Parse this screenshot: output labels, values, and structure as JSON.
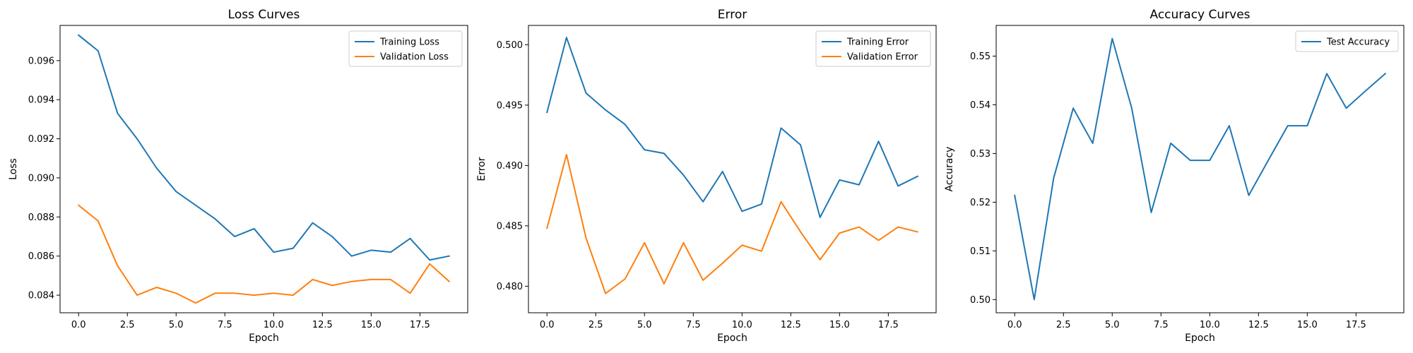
{
  "colors": {
    "blue": "#1f77b4",
    "orange": "#ff7f0e",
    "axis": "#000000",
    "legend_border": "#cccccc"
  },
  "chart_data": [
    {
      "type": "line",
      "title": "Loss Curves",
      "xlabel": "Epoch",
      "ylabel": "Loss",
      "x": [
        0,
        1,
        2,
        3,
        4,
        5,
        6,
        7,
        8,
        9,
        10,
        11,
        12,
        13,
        14,
        15,
        16,
        17,
        18,
        19
      ],
      "xlim": [
        -0.95,
        19.95
      ],
      "ylim": [
        0.0831,
        0.0978
      ],
      "xticks": [
        0.0,
        2.5,
        5.0,
        7.5,
        10.0,
        12.5,
        15.0,
        17.5
      ],
      "xtick_labels": [
        "0.0",
        "2.5",
        "5.0",
        "7.5",
        "10.0",
        "12.5",
        "15.0",
        "17.5"
      ],
      "yticks": [
        0.084,
        0.086,
        0.088,
        0.09,
        0.092,
        0.094,
        0.096
      ],
      "ytick_labels": [
        "0.084",
        "0.086",
        "0.088",
        "0.090",
        "0.092",
        "0.094",
        "0.096"
      ],
      "legend": "top-right",
      "grid": false,
      "series": [
        {
          "name": "Training Loss",
          "color": "#1f77b4",
          "values": [
            0.0973,
            0.0965,
            0.0933,
            0.092,
            0.0905,
            0.0893,
            0.0886,
            0.0879,
            0.087,
            0.0874,
            0.0862,
            0.0864,
            0.0877,
            0.087,
            0.086,
            0.0863,
            0.0862,
            0.0869,
            0.0858,
            0.086
          ]
        },
        {
          "name": "Validation Loss",
          "color": "#ff7f0e",
          "values": [
            0.0886,
            0.0878,
            0.0855,
            0.084,
            0.0844,
            0.0841,
            0.0836,
            0.0841,
            0.0841,
            0.084,
            0.0841,
            0.084,
            0.0848,
            0.0845,
            0.0847,
            0.0848,
            0.0848,
            0.0841,
            0.0856,
            0.0847
          ]
        }
      ]
    },
    {
      "type": "line",
      "title": "Error",
      "xlabel": "Epoch",
      "ylabel": "Error",
      "x": [
        0,
        1,
        2,
        3,
        4,
        5,
        6,
        7,
        8,
        9,
        10,
        11,
        12,
        13,
        14,
        15,
        16,
        17,
        18,
        19
      ],
      "xlim": [
        -0.95,
        19.95
      ],
      "ylim": [
        0.4778,
        0.5016
      ],
      "xticks": [
        0.0,
        2.5,
        5.0,
        7.5,
        10.0,
        12.5,
        15.0,
        17.5
      ],
      "xtick_labels": [
        "0.0",
        "2.5",
        "5.0",
        "7.5",
        "10.0",
        "12.5",
        "15.0",
        "17.5"
      ],
      "yticks": [
        0.48,
        0.485,
        0.49,
        0.495,
        0.5
      ],
      "ytick_labels": [
        "0.480",
        "0.485",
        "0.490",
        "0.495",
        "0.500"
      ],
      "legend": "top-right",
      "grid": false,
      "series": [
        {
          "name": "Training Error",
          "color": "#1f77b4",
          "values": [
            0.4944,
            0.5006,
            0.496,
            0.4946,
            0.4934,
            0.4913,
            0.491,
            0.4892,
            0.487,
            0.4895,
            0.4862,
            0.4868,
            0.4931,
            0.4917,
            0.4857,
            0.4888,
            0.4884,
            0.492,
            0.4883,
            0.4891
          ]
        },
        {
          "name": "Validation Error",
          "color": "#ff7f0e",
          "values": [
            0.4848,
            0.4909,
            0.484,
            0.4794,
            0.4806,
            0.4836,
            0.4802,
            0.4836,
            0.4805,
            0.4819,
            0.4834,
            0.4829,
            0.487,
            0.4845,
            0.4822,
            0.4844,
            0.4849,
            0.4838,
            0.4849,
            0.4845
          ]
        }
      ]
    },
    {
      "type": "line",
      "title": "Accuracy Curves",
      "xlabel": "Epoch",
      "ylabel": "Accuracy",
      "x": [
        0,
        1,
        2,
        3,
        4,
        5,
        6,
        7,
        8,
        9,
        10,
        11,
        12,
        13,
        14,
        15,
        16,
        17,
        18,
        19
      ],
      "xlim": [
        -0.95,
        19.95
      ],
      "ylim": [
        0.4973,
        0.5563
      ],
      "xticks": [
        0.0,
        2.5,
        5.0,
        7.5,
        10.0,
        12.5,
        15.0,
        17.5
      ],
      "xtick_labels": [
        "0.0",
        "2.5",
        "5.0",
        "7.5",
        "10.0",
        "12.5",
        "15.0",
        "17.5"
      ],
      "yticks": [
        0.5,
        0.51,
        0.52,
        0.53,
        0.54,
        0.55
      ],
      "ytick_labels": [
        "0.50",
        "0.51",
        "0.52",
        "0.53",
        "0.54",
        "0.55"
      ],
      "legend": "top-right",
      "grid": false,
      "series": [
        {
          "name": "Test Accuracy",
          "color": "#1f77b4",
          "values": [
            0.5214,
            0.5,
            0.525,
            0.5393,
            0.5321,
            0.5536,
            0.5393,
            0.5179,
            0.5321,
            0.5286,
            0.5286,
            0.5357,
            0.5214,
            0.5286,
            0.5357,
            0.5357,
            0.5464,
            0.5393,
            0.5429,
            0.5464
          ]
        }
      ]
    }
  ]
}
